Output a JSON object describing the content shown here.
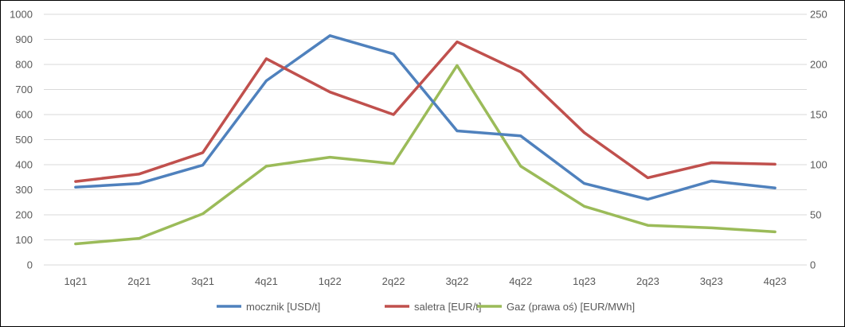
{
  "chart_data": {
    "type": "line",
    "categories": [
      "1q21",
      "2q21",
      "3q21",
      "4q21",
      "1q22",
      "2q22",
      "3q22",
      "4q22",
      "1q23",
      "2q23",
      "3q23",
      "4q23"
    ],
    "ylim": [
      0,
      1000
    ],
    "y_ticks": [
      "0",
      "100",
      "200",
      "300",
      "400",
      "500",
      "600",
      "700",
      "800",
      "900",
      "1000"
    ],
    "y2lim": [
      0,
      250
    ],
    "y2_ticks": [
      "0",
      "50",
      "100",
      "150",
      "200",
      "250"
    ],
    "grid": "horizontal",
    "legend_position": "bottom",
    "series": [
      {
        "name": "mocznik [USD/t]",
        "axis": "left",
        "color": "#4F81BD",
        "values": [
          310,
          325,
          398,
          735,
          915,
          842,
          535,
          515,
          325,
          262,
          335,
          307
        ]
      },
      {
        "name": "saletra [EUR/t]",
        "axis": "left",
        "color": "#C0504D",
        "values": [
          333,
          363,
          448,
          823,
          690,
          600,
          890,
          770,
          528,
          348,
          408,
          402
        ]
      },
      {
        "name": "Gaz (prawa oś) [EUR/MWh]",
        "axis": "right",
        "color": "#9BBB59",
        "values": [
          21,
          26.5,
          51,
          98.5,
          107.5,
          101,
          199,
          98.5,
          58.5,
          39.5,
          37,
          33
        ]
      }
    ]
  }
}
